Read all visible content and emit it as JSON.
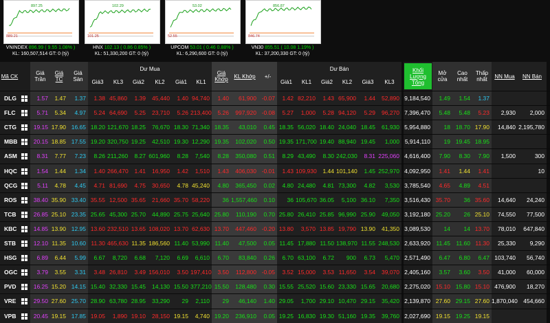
{
  "indices": [
    {
      "name": "VNINDEX",
      "value": "896.99",
      "change": "( 9.55 1.08% )",
      "stats": "KL: 160,507,514 GT: 0 (tỷ)",
      "high": "897.25",
      "low": "889.21"
    },
    {
      "name": "HNX",
      "value": "102.13",
      "change": "( 0.86 0.85% )",
      "stats": "KL: 51,330,200 GT: 0 (tỷ)",
      "high": "102.29",
      "low": "101.25"
    },
    {
      "name": "UPCOM",
      "value": "53.01",
      "change": "( 0.46 0.88% )",
      "stats": "KL: 6,290,600 GT: 0 (tỷ)",
      "high": "53.02",
      "low": "52.55"
    },
    {
      "name": "VN30",
      "value": "855.51",
      "change": "( 10.08 1.19% )",
      "stats": "KL: 37,200,330 GT: 0 (tỷ)",
      "high": "856.87",
      "low": "846.74"
    }
  ],
  "table": {
    "groups": {
      "buy": "Dư Mua",
      "sell": "Dư Bán"
    },
    "columns": [
      "Mã CK",
      "Giá Trần",
      "Giá TC",
      "Giá Sàn",
      "Giá3",
      "KL3",
      "Giá2",
      "KL2",
      "Giá1",
      "KL1",
      "Giá Khớp",
      "KL Khớp",
      "+/-",
      "Giá1",
      "KL1",
      "Giá2",
      "KL2",
      "Giá3",
      "KL3",
      "Khối Lượng Tổng",
      "Mở cửa",
      "Cao nhất",
      "Thấp nhất",
      "NN Mua",
      "NN Bán"
    ],
    "rows": [
      [
        "DLG",
        "1.57",
        "1.47",
        "1.37",
        "1.38",
        "45,860",
        "1.39",
        "45,440",
        "1.40",
        "94,740",
        "1.40",
        "61,900",
        "-0.07",
        "1.42",
        "82,210",
        "1.43",
        "65,900",
        "1.44",
        "52,890",
        "9,184,540",
        "1.49",
        "1.54",
        "1.37",
        null,
        null
      ],
      [
        "FLC",
        "5.71",
        "5.34",
        "4.97",
        "5.24",
        "64,690",
        "5.25",
        "23,710",
        "5.26",
        "213,400",
        "5.26",
        "997,920",
        "-0.08",
        "5.27",
        "1,000",
        "5.28",
        "94,120",
        "5.29",
        "96,270",
        "7,396,470",
        "5.48",
        "5.48",
        "5.23",
        "2,930",
        "2,000"
      ],
      [
        "CTG",
        "19.15",
        "17.90",
        "16.65",
        "18.20",
        "121,670",
        "18.25",
        "76,670",
        "18.30",
        "71,340",
        "18.35",
        "43,010",
        "0.45",
        "18.35",
        "56,020",
        "18.40",
        "24,040",
        "18.45",
        "61,930",
        "5,954,880",
        "18",
        "18.70",
        "17.90",
        "14,840",
        "2,195,780"
      ],
      [
        "MBB",
        "20.15",
        "18.85",
        "17.55",
        "19.20",
        "320,750",
        "19.25",
        "42,510",
        "19.30",
        "12,290",
        "19.35",
        "102,020",
        "0.50",
        "19.35",
        "171,700",
        "19.40",
        "88,940",
        "19.45",
        "1,000",
        "5,914,110",
        "19",
        "19.45",
        "18.95",
        null,
        null
      ],
      [
        "ASM",
        "8.31",
        "7.77",
        "7.23",
        "8.26",
        "211,260",
        "8.27",
        "601,960",
        "8.28",
        "7,540",
        "8.28",
        "350,080",
        "0.51",
        "8.29",
        "43,490",
        "8.30",
        "242,030",
        "8.31",
        "225,060",
        "4,616,400",
        "7.90",
        "8.30",
        "7.90",
        "1,500",
        "300"
      ],
      [
        "HQC",
        "1.54",
        "1.44",
        "1.34",
        "1.40",
        "266,470",
        "1.41",
        "16,950",
        "1.42",
        "1,510",
        "1.43",
        "406,030",
        "-0.01",
        "1.43",
        "109,930",
        "1.44",
        "101,140",
        "1.45",
        "252,970",
        "4,092,950",
        "1.41",
        "1.44",
        "1.41",
        null,
        "10"
      ],
      [
        "QCG",
        "5.11",
        "4.78",
        "4.45",
        "4.71",
        "81,690",
        "4.75",
        "30,650",
        "4.78",
        "45,240",
        "4.80",
        "365,450",
        "0.02",
        "4.80",
        "24,480",
        "4.81",
        "73,300",
        "4.82",
        "3,530",
        "3,785,540",
        "4.65",
        "4.89",
        "4.51",
        null,
        null
      ],
      [
        "ROS",
        "38.40",
        "35.90",
        "33.40",
        "35.55",
        "12,500",
        "35.65",
        "21,660",
        "35.70",
        "58,220",
        "36",
        "1,557,460",
        "0.10",
        "36",
        "105,670",
        "36.05",
        "5,100",
        "36.10",
        "7,350",
        "3,516,430",
        "35.70",
        "36",
        "35.60",
        "14,640",
        "24,240"
      ],
      [
        "TCB",
        "26.85",
        "25.10",
        "23.35",
        "25.65",
        "45,300",
        "25.70",
        "44,890",
        "25.75",
        "25,640",
        "25.80",
        "110,190",
        "0.70",
        "25.80",
        "26,410",
        "25.85",
        "96,990",
        "25.90",
        "49,050",
        "3,192,180",
        "25.20",
        "26",
        "25.10",
        "74,550",
        "77,500"
      ],
      [
        "KBC",
        "14.85",
        "13.90",
        "12.95",
        "13.60",
        "232,510",
        "13.65",
        "108,020",
        "13.70",
        "62,630",
        "13.70",
        "447,460",
        "-0.20",
        "13.80",
        "3,570",
        "13.85",
        "19,790",
        "13.90",
        "41,350",
        "3,089,530",
        "14",
        "14",
        "13.70",
        "78,010",
        "647,840"
      ],
      [
        "STB",
        "12.10",
        "11.35",
        "10.60",
        "11.30",
        "465,630",
        "11.35",
        "186,560",
        "11.40",
        "53,990",
        "11.40",
        "47,500",
        "0.05",
        "11.45",
        "17,880",
        "11.50",
        "138,970",
        "11.55",
        "248,530",
        "2,633,920",
        "11.45",
        "11.60",
        "11.30",
        "25,330",
        "9,290"
      ],
      [
        "HSG",
        "6.89",
        "6.44",
        "5.99",
        "6.67",
        "8,720",
        "6.68",
        "7,120",
        "6.69",
        "6,610",
        "6.70",
        "83,840",
        "0.26",
        "6.70",
        "63,100",
        "6.72",
        "900",
        "6.73",
        "5,470",
        "2,571,490",
        "6.47",
        "6.80",
        "6.47",
        "103,740",
        "56,740"
      ],
      [
        "OGC",
        "3.79",
        "3.55",
        "3.31",
        "3.48",
        "26,810",
        "3.49",
        "156,010",
        "3.50",
        "197,410",
        "3.50",
        "112,800",
        "-0.05",
        "3.52",
        "15,000",
        "3.53",
        "11,650",
        "3.54",
        "39,070",
        "2,405,160",
        "3.57",
        "3.60",
        "3.50",
        "41,000",
        "60,000"
      ],
      [
        "PVD",
        "16.25",
        "15.20",
        "14.15",
        "15.40",
        "32,330",
        "15.45",
        "14,130",
        "15.50",
        "377,210",
        "15.50",
        "128,480",
        "0.30",
        "15.55",
        "25,520",
        "15.60",
        "23,330",
        "15.65",
        "20,680",
        "2,275,020",
        "15.10",
        "15.80",
        "15.10",
        "476,900",
        "18,270"
      ],
      [
        "VRE",
        "29.50",
        "27.60",
        "25.70",
        "28.90",
        "63,780",
        "28.95",
        "33,290",
        "29",
        "2,110",
        "29",
        "46,140",
        "1.40",
        "29.05",
        "1,700",
        "29.10",
        "10,470",
        "29.15",
        "35,420",
        "2,139,870",
        "27.60",
        "29.15",
        "27.60",
        "1,870,040",
        "454,660"
      ],
      [
        "VPB",
        "20.45",
        "19.15",
        "17.85",
        "19.05",
        "1,890",
        "19.10",
        "28,150",
        "19.15",
        "4,740",
        "19.20",
        "236,910",
        "0.05",
        "19.25",
        "16,830",
        "19.30",
        "51,160",
        "19.35",
        "39,760",
        "2,027,690",
        "19.15",
        "19.25",
        "19.15",
        null,
        null
      ]
    ]
  }
}
